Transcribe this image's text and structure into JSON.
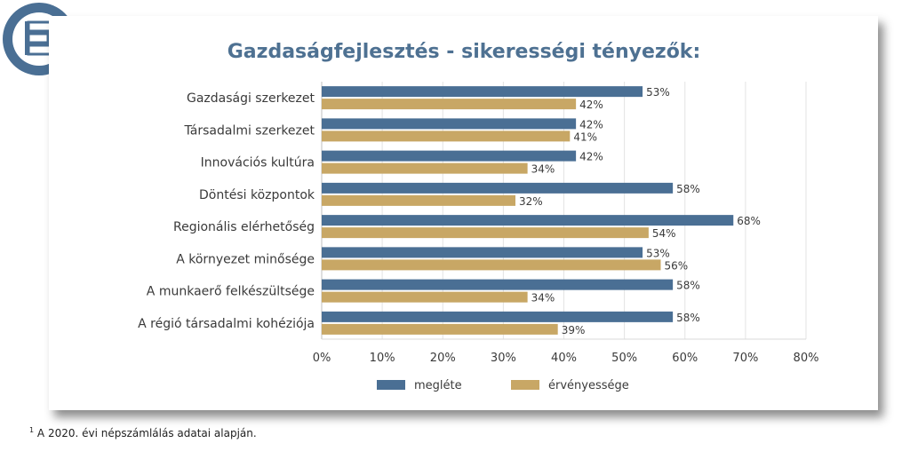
{
  "chart_data": {
    "type": "bar",
    "orientation": "horizontal",
    "title": "Gazdaságfejlesztés - sikerességi tényezők:",
    "categories": [
      "Gazdasági szerkezet",
      "Társadalmi szerkezet",
      "Innovációs kultúra",
      "Döntési központok",
      "Regionális elérhetőség",
      "A környezet minősége",
      "A munkaerő felkészültsége",
      "A régió társadalmi kohéziója"
    ],
    "series": [
      {
        "name": "megléte",
        "color": "#4a6f94",
        "values": [
          53,
          42,
          42,
          58,
          68,
          53,
          58,
          58
        ],
        "labels": [
          "53%",
          "42%",
          "42%",
          "58%",
          "68%",
          "53%",
          "58%",
          "58%"
        ]
      },
      {
        "name": "érvényessége",
        "color": "#c8a765",
        "values": [
          42,
          41,
          34,
          32,
          54,
          56,
          34,
          39
        ],
        "labels": [
          "42%",
          "41%",
          "34%",
          "32%",
          "54%",
          "56%",
          "34%",
          "39%"
        ]
      }
    ],
    "xlim": [
      0,
      80
    ],
    "xticks": [
      "0%",
      "10%",
      "20%",
      "30%",
      "40%",
      "50%",
      "60%",
      "70%",
      "80%"
    ],
    "grid": true,
    "legend_position": "bottom"
  },
  "logo": {
    "name": "logo-icon",
    "colors": {
      "ring": "#4a6f94",
      "inner": "#ffffff"
    }
  },
  "footnote": {
    "marker": "1",
    "text": "A 2020. évi népszámlálás adatai alapján."
  }
}
